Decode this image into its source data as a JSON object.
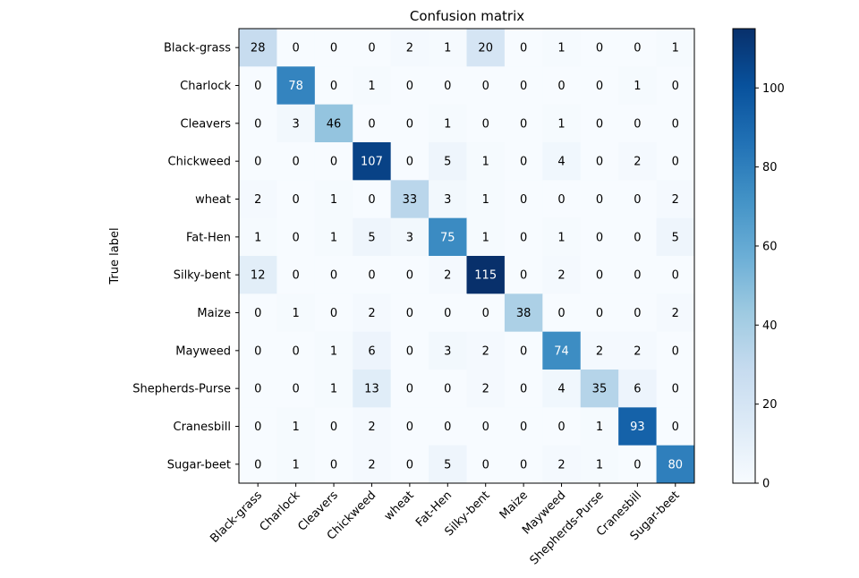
{
  "chart_data": {
    "type": "heatmap",
    "title": "Confusion matrix",
    "ylabel": "True label",
    "xlabel": "",
    "rows": [
      "Black-grass",
      "Charlock",
      "Cleavers",
      "Chickweed",
      "wheat",
      "Fat-Hen",
      "Silky-bent",
      "Maize",
      "Mayweed",
      "Shepherds-Purse",
      "Cranesbill",
      "Sugar-beet"
    ],
    "columns": [
      "Black-grass",
      "Charlock",
      "Cleavers",
      "Chickweed",
      "wheat",
      "Fat-Hen",
      "Silky-bent",
      "Maize",
      "Mayweed",
      "Shepherds-Purse",
      "Cranesbill",
      "Sugar-beet"
    ],
    "values": [
      [
        28,
        0,
        0,
        0,
        2,
        1,
        20,
        0,
        1,
        0,
        0,
        1
      ],
      [
        0,
        78,
        0,
        1,
        0,
        0,
        0,
        0,
        0,
        0,
        1,
        0
      ],
      [
        0,
        3,
        46,
        0,
        0,
        1,
        0,
        0,
        1,
        0,
        0,
        0
      ],
      [
        0,
        0,
        0,
        107,
        0,
        5,
        1,
        0,
        4,
        0,
        2,
        0
      ],
      [
        2,
        0,
        1,
        0,
        33,
        3,
        1,
        0,
        0,
        0,
        0,
        2
      ],
      [
        1,
        0,
        1,
        5,
        3,
        75,
        1,
        0,
        1,
        0,
        0,
        5
      ],
      [
        12,
        0,
        0,
        0,
        0,
        2,
        115,
        0,
        2,
        0,
        0,
        0
      ],
      [
        0,
        1,
        0,
        2,
        0,
        0,
        0,
        38,
        0,
        0,
        0,
        2
      ],
      [
        0,
        0,
        1,
        6,
        0,
        3,
        2,
        0,
        74,
        2,
        2,
        0
      ],
      [
        0,
        0,
        1,
        13,
        0,
        0,
        2,
        0,
        4,
        35,
        6,
        0
      ],
      [
        0,
        1,
        0,
        2,
        0,
        0,
        0,
        0,
        0,
        1,
        93,
        0
      ],
      [
        0,
        1,
        0,
        2,
        0,
        5,
        0,
        0,
        2,
        1,
        0,
        80
      ]
    ],
    "colormap": "Blues",
    "colorbar": {
      "min": 0,
      "max": 115,
      "ticks": [
        0,
        20,
        40,
        60,
        80,
        100
      ]
    },
    "grid": false
  }
}
